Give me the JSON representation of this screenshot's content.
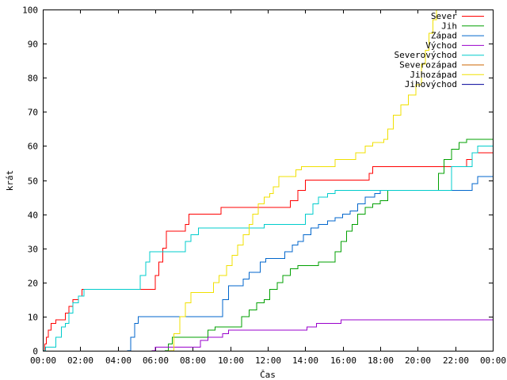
{
  "chart_data": {
    "type": "line",
    "title": "",
    "xlabel": "Čas",
    "ylabel": "krát",
    "xlim": [
      0,
      24
    ],
    "ylim": [
      0,
      100
    ],
    "grid": false,
    "legend_placement": "top-right",
    "x_tick_labels": [
      "00:00",
      "02:00",
      "04:00",
      "06:00",
      "08:00",
      "10:00",
      "12:00",
      "14:00",
      "16:00",
      "18:00",
      "20:00",
      "22:00",
      "00:00"
    ],
    "y_tick_labels": [
      "0",
      "10",
      "20",
      "30",
      "40",
      "50",
      "60",
      "70",
      "80",
      "90",
      "100"
    ],
    "series": [
      {
        "name": "Sever",
        "color": "#ff0000",
        "points": [
          [
            0.0,
            0
          ],
          [
            0.1,
            2
          ],
          [
            0.2,
            4
          ],
          [
            0.3,
            6
          ],
          [
            0.45,
            8
          ],
          [
            0.7,
            9
          ],
          [
            1.2,
            11
          ],
          [
            1.4,
            13
          ],
          [
            1.6,
            15
          ],
          [
            1.9,
            16
          ],
          [
            2.1,
            18
          ],
          [
            5.8,
            18
          ],
          [
            6.0,
            22
          ],
          [
            6.2,
            26
          ],
          [
            6.4,
            30
          ],
          [
            6.6,
            35
          ],
          [
            7.6,
            37
          ],
          [
            7.8,
            40
          ],
          [
            9.5,
            42
          ],
          [
            13.2,
            44
          ],
          [
            13.6,
            47
          ],
          [
            14.0,
            50
          ],
          [
            17.4,
            52
          ],
          [
            17.6,
            54
          ],
          [
            22.4,
            54
          ],
          [
            22.6,
            56
          ],
          [
            22.9,
            58
          ],
          [
            24.0,
            58
          ]
        ]
      },
      {
        "name": "Jih",
        "color": "#00a000",
        "points": [
          [
            6.5,
            0
          ],
          [
            6.7,
            2
          ],
          [
            6.9,
            4
          ],
          [
            8.5,
            4
          ],
          [
            8.8,
            6
          ],
          [
            9.2,
            7
          ],
          [
            10.3,
            7
          ],
          [
            10.6,
            10
          ],
          [
            11.0,
            12
          ],
          [
            11.4,
            14
          ],
          [
            11.8,
            15
          ],
          [
            12.1,
            18
          ],
          [
            12.5,
            20
          ],
          [
            12.8,
            22
          ],
          [
            13.2,
            24
          ],
          [
            13.6,
            25
          ],
          [
            14.7,
            26
          ],
          [
            15.3,
            26
          ],
          [
            15.6,
            29
          ],
          [
            15.9,
            32
          ],
          [
            16.2,
            35
          ],
          [
            16.5,
            37
          ],
          [
            16.8,
            40
          ],
          [
            17.2,
            42
          ],
          [
            17.6,
            43
          ],
          [
            18.0,
            44
          ],
          [
            18.4,
            47
          ],
          [
            20.8,
            47
          ],
          [
            21.1,
            52
          ],
          [
            21.4,
            56
          ],
          [
            21.8,
            59
          ],
          [
            22.2,
            61
          ],
          [
            22.6,
            62
          ],
          [
            24.0,
            62
          ]
        ]
      },
      {
        "name": "Západ",
        "color": "#0066cc",
        "points": [
          [
            4.5,
            0
          ],
          [
            4.7,
            4
          ],
          [
            4.9,
            8
          ],
          [
            5.1,
            10
          ],
          [
            9.3,
            10
          ],
          [
            9.6,
            15
          ],
          [
            9.9,
            19
          ],
          [
            10.4,
            19
          ],
          [
            10.7,
            21
          ],
          [
            11.0,
            23
          ],
          [
            11.6,
            26
          ],
          [
            11.9,
            27
          ],
          [
            12.9,
            29
          ],
          [
            13.3,
            31
          ],
          [
            13.6,
            32
          ],
          [
            13.9,
            34
          ],
          [
            14.3,
            36
          ],
          [
            14.7,
            37
          ],
          [
            15.2,
            38
          ],
          [
            15.6,
            39
          ],
          [
            16.0,
            40
          ],
          [
            16.4,
            41
          ],
          [
            16.8,
            43
          ],
          [
            17.2,
            45
          ],
          [
            17.7,
            46
          ],
          [
            18.0,
            47
          ],
          [
            22.6,
            47
          ],
          [
            22.9,
            49
          ],
          [
            23.2,
            51
          ],
          [
            24.0,
            51
          ]
        ]
      },
      {
        "name": "Východ",
        "color": "#9900cc",
        "points": [
          [
            5.8,
            0
          ],
          [
            6.0,
            1
          ],
          [
            8.0,
            1
          ],
          [
            8.4,
            3
          ],
          [
            8.8,
            4
          ],
          [
            9.6,
            5
          ],
          [
            9.9,
            6
          ],
          [
            13.6,
            6
          ],
          [
            14.1,
            7
          ],
          [
            14.6,
            8
          ],
          [
            15.9,
            9
          ],
          [
            24.0,
            9
          ]
        ]
      },
      {
        "name": "Severovýchod",
        "color": "#00cccc",
        "points": [
          [
            0.0,
            0
          ],
          [
            0.15,
            1
          ],
          [
            0.4,
            1
          ],
          [
            0.7,
            4
          ],
          [
            1.0,
            7
          ],
          [
            1.2,
            8
          ],
          [
            1.4,
            11
          ],
          [
            1.6,
            14
          ],
          [
            1.9,
            16
          ],
          [
            2.2,
            18
          ],
          [
            5.0,
            18
          ],
          [
            5.2,
            22
          ],
          [
            5.5,
            26
          ],
          [
            5.7,
            29
          ],
          [
            7.3,
            29
          ],
          [
            7.6,
            32
          ],
          [
            7.9,
            34
          ],
          [
            8.3,
            36
          ],
          [
            11.6,
            36
          ],
          [
            11.8,
            37
          ],
          [
            13.7,
            37
          ],
          [
            14.0,
            40
          ],
          [
            14.4,
            43
          ],
          [
            14.7,
            45
          ],
          [
            15.2,
            46
          ],
          [
            15.6,
            47
          ],
          [
            21.5,
            47
          ],
          [
            21.8,
            54
          ],
          [
            22.6,
            54
          ],
          [
            22.9,
            58
          ],
          [
            23.2,
            60
          ],
          [
            24.0,
            60
          ]
        ]
      },
      {
        "name": "Severozápad",
        "color": "#cc6600",
        "points": []
      },
      {
        "name": "Jihozápad",
        "color": "#f0e000",
        "points": [
          [
            6.7,
            0
          ],
          [
            7.0,
            5
          ],
          [
            7.3,
            10
          ],
          [
            7.6,
            14
          ],
          [
            7.9,
            17
          ],
          [
            8.8,
            17
          ],
          [
            9.1,
            20
          ],
          [
            9.4,
            22
          ],
          [
            9.8,
            25
          ],
          [
            10.1,
            28
          ],
          [
            10.4,
            31
          ],
          [
            10.7,
            34
          ],
          [
            11.0,
            37
          ],
          [
            11.2,
            40
          ],
          [
            11.5,
            43
          ],
          [
            11.8,
            45
          ],
          [
            12.1,
            46
          ],
          [
            12.3,
            48
          ],
          [
            12.6,
            51
          ],
          [
            13.2,
            51
          ],
          [
            13.5,
            53
          ],
          [
            13.8,
            54
          ],
          [
            15.3,
            54
          ],
          [
            15.6,
            56
          ],
          [
            16.4,
            56
          ],
          [
            16.7,
            58
          ],
          [
            17.2,
            60
          ],
          [
            17.6,
            61
          ],
          [
            18.2,
            62
          ],
          [
            18.4,
            65
          ],
          [
            18.7,
            69
          ],
          [
            19.1,
            72
          ],
          [
            19.5,
            75
          ],
          [
            19.9,
            78
          ],
          [
            20.2,
            84
          ],
          [
            20.4,
            88
          ],
          [
            20.6,
            93
          ],
          [
            20.8,
            97
          ],
          [
            21.0,
            100
          ]
        ]
      },
      {
        "name": "Jihovýchod",
        "color": "#000099",
        "points": []
      }
    ]
  }
}
